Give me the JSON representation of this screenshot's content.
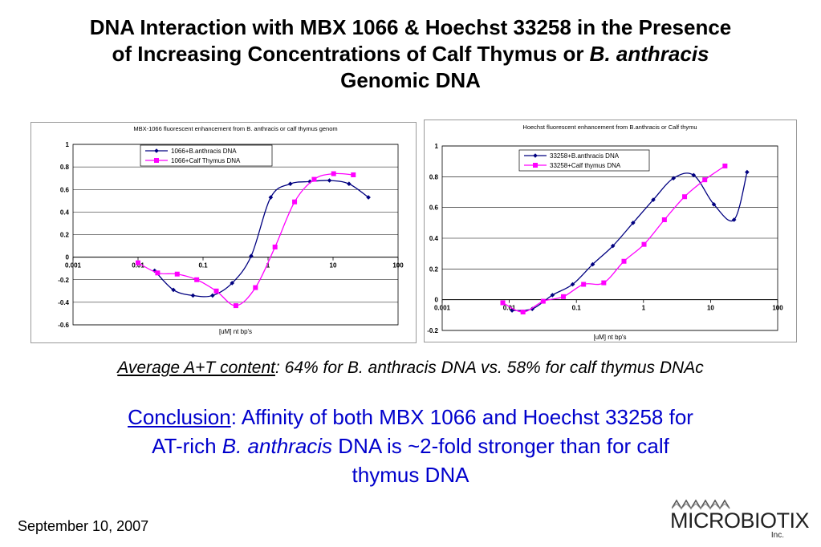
{
  "title": {
    "line1": "DNA Interaction with MBX 1066 & Hoechst 33258 in the Presence",
    "line2a": "of Increasing Concentrations of Calf Thymus  or ",
    "line2b": "B. anthracis",
    "line3": "Genomic DNA"
  },
  "avg": {
    "label": "Average A+T content",
    "text": ":  64% for B. anthracis DNA vs. 58% for calf thymus DNAc"
  },
  "conclusion": {
    "label": "Conclusion",
    "part1": ":  Affinity of both MBX 1066 and Hoechst 33258 for",
    "part2a": "AT-rich ",
    "part2b": "B. anthracis",
    "part2c": " DNA is ~2-fold stronger than for calf",
    "part3": "thymus DNA"
  },
  "footer": {
    "date": "September 10, 2007"
  },
  "logo": {
    "name": "MICROBIOTIX",
    "suffix": "Inc."
  },
  "colors": {
    "series1": "#000080",
    "series2": "#ff00ff",
    "axis": "#000000",
    "grid": "#000000"
  },
  "chart_data": [
    {
      "type": "line",
      "title": "MBX-1066 fluorescent enhancement from B. anthracis or calf thymus genom",
      "xlabel": "[uM] nt bp's",
      "ylabel": "",
      "xscale": "log",
      "xlim": [
        0.001,
        100
      ],
      "ylim": [
        -0.6,
        1
      ],
      "x_ticks": [
        "0.001",
        "0.01",
        "0.1",
        "1",
        "10",
        "100"
      ],
      "y_ticks": [
        "1",
        "0.8",
        "0.6",
        "0.4",
        "0.2",
        "0",
        "-0.2",
        "-0.4",
        "-0.6"
      ],
      "grid": "horizontal",
      "legend": "top-left",
      "series": [
        {
          "name": "1066+B.anthracis DNA",
          "x": [
            0.018,
            0.035,
            0.07,
            0.14,
            0.28,
            0.55,
            1.1,
            2.2,
            4.4,
            8.8,
            17.6,
            35
          ],
          "y": [
            -0.12,
            -0.29,
            -0.34,
            -0.34,
            -0.23,
            0.01,
            0.53,
            0.65,
            0.67,
            0.68,
            0.65,
            0.53
          ]
        },
        {
          "name": "1066+Calf Thymus DNA",
          "x": [
            0.01,
            0.02,
            0.04,
            0.08,
            0.16,
            0.32,
            0.64,
            1.28,
            2.56,
            5.12,
            10.2,
            20.5
          ],
          "y": [
            -0.05,
            -0.14,
            -0.15,
            -0.2,
            -0.3,
            -0.43,
            -0.27,
            0.09,
            0.49,
            0.69,
            0.74,
            0.73
          ]
        }
      ]
    },
    {
      "type": "line",
      "title": "Hoechst  fluorescent enhancement from B.anthracis or Calf thymu",
      "xlabel": "[uM] nt bp's",
      "ylabel": "",
      "xscale": "log",
      "xlim": [
        0.001,
        100
      ],
      "ylim": [
        -0.2,
        1
      ],
      "x_ticks": [
        "0.001",
        "0.01",
        "0.1",
        "1",
        "10",
        "100"
      ],
      "y_ticks": [
        "1",
        "0.8",
        "0.6",
        "0.4",
        "0.2",
        "0",
        "-0.2"
      ],
      "grid": "horizontal",
      "legend": "top-left",
      "series": [
        {
          "name": "33258+B.anthracis DNA",
          "x": [
            0.011,
            0.022,
            0.044,
            0.088,
            0.175,
            0.35,
            0.7,
            1.4,
            2.8,
            5.6,
            11.2,
            22.4,
            35
          ],
          "y": [
            -0.07,
            -0.06,
            0.03,
            0.1,
            0.23,
            0.35,
            0.5,
            0.65,
            0.79,
            0.81,
            0.62,
            0.52,
            0.83
          ]
        },
        {
          "name": "33258+Calf thymus DNA",
          "x": [
            0.008,
            0.016,
            0.032,
            0.064,
            0.128,
            0.256,
            0.512,
            1.02,
            2.05,
            4.1,
            8.2,
            16.4
          ],
          "y": [
            -0.02,
            -0.08,
            -0.01,
            0.02,
            0.1,
            0.11,
            0.25,
            0.36,
            0.52,
            0.67,
            0.78,
            0.87
          ]
        }
      ]
    }
  ]
}
